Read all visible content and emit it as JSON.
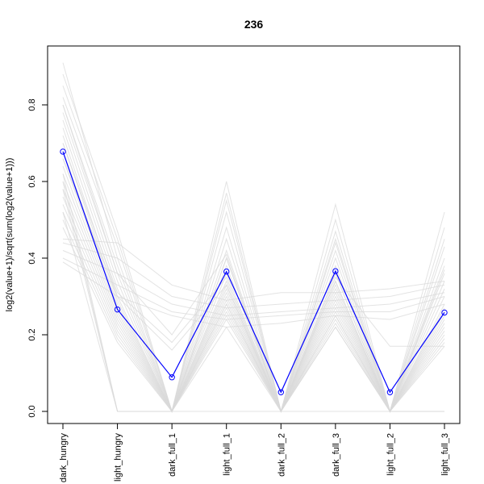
{
  "chart_data": {
    "type": "line",
    "title": "236",
    "xlabel": "",
    "ylabel": "log2(value+1)/sqrt(sum(log2(value+1)))",
    "categories": [
      "dark_hungry",
      "light_hungry",
      "dark_full_1",
      "light_full_1",
      "dark_full_2",
      "dark_full_3",
      "light_full_2",
      "light_full_3"
    ],
    "ylim": [
      -0.02,
      0.95
    ],
    "yticks": [
      0.0,
      0.2,
      0.4,
      0.6,
      0.8
    ],
    "ytick_labels": [
      "0.0",
      "0.2",
      "0.4",
      "0.6",
      "0.8"
    ],
    "grid": false,
    "legend": "none",
    "highlight_color": "#0000ff",
    "background_color": "#d9d9d9",
    "series": [
      {
        "values": [
          0.678,
          0.266,
          0.089,
          0.365,
          0.05,
          0.366,
          0.05,
          0.258
        ],
        "highlight": true
      },
      {
        "values": [
          0.91,
          0.4,
          0.0,
          0.6,
          0.0,
          0.54,
          0.0,
          0.52
        ]
      },
      {
        "values": [
          0.88,
          0.47,
          0.0,
          0.57,
          0.0,
          0.5,
          0.0,
          0.48
        ]
      },
      {
        "values": [
          0.85,
          0.45,
          0.0,
          0.55,
          0.0,
          0.47,
          0.0,
          0.45
        ]
      },
      {
        "values": [
          0.82,
          0.43,
          0.0,
          0.52,
          0.0,
          0.45,
          0.0,
          0.43
        ]
      },
      {
        "values": [
          0.8,
          0.38,
          0.0,
          0.48,
          0.0,
          0.44,
          0.0,
          0.4
        ]
      },
      {
        "values": [
          0.78,
          0.36,
          0.0,
          0.45,
          0.0,
          0.42,
          0.0,
          0.38
        ]
      },
      {
        "values": [
          0.76,
          0.34,
          0.0,
          0.42,
          0.0,
          0.4,
          0.0,
          0.36
        ]
      },
      {
        "values": [
          0.74,
          0.32,
          0.0,
          0.4,
          0.0,
          0.38,
          0.0,
          0.34
        ]
      },
      {
        "values": [
          0.72,
          0.3,
          0.0,
          0.38,
          0.0,
          0.36,
          0.0,
          0.32
        ]
      },
      {
        "values": [
          0.7,
          0.29,
          0.0,
          0.36,
          0.0,
          0.34,
          0.0,
          0.3
        ]
      },
      {
        "values": [
          0.68,
          0.28,
          0.0,
          0.34,
          0.0,
          0.32,
          0.0,
          0.28
        ]
      },
      {
        "values": [
          0.66,
          0.27,
          0.0,
          0.33,
          0.0,
          0.31,
          0.0,
          0.27
        ]
      },
      {
        "values": [
          0.64,
          0.26,
          0.0,
          0.32,
          0.0,
          0.3,
          0.0,
          0.26
        ]
      },
      {
        "values": [
          0.62,
          0.25,
          0.0,
          0.3,
          0.0,
          0.29,
          0.0,
          0.25
        ]
      },
      {
        "values": [
          0.6,
          0.24,
          0.0,
          0.29,
          0.0,
          0.28,
          0.0,
          0.24
        ]
      },
      {
        "values": [
          0.58,
          0.23,
          0.0,
          0.28,
          0.0,
          0.27,
          0.0,
          0.23
        ]
      },
      {
        "values": [
          0.56,
          0.22,
          0.0,
          0.27,
          0.0,
          0.26,
          0.0,
          0.22
        ]
      },
      {
        "values": [
          0.54,
          0.21,
          0.0,
          0.26,
          0.0,
          0.25,
          0.0,
          0.21
        ]
      },
      {
        "values": [
          0.52,
          0.2,
          0.0,
          0.25,
          0.0,
          0.24,
          0.0,
          0.2
        ]
      },
      {
        "values": [
          0.5,
          0.19,
          0.0,
          0.24,
          0.0,
          0.23,
          0.0,
          0.19
        ]
      },
      {
        "values": [
          0.48,
          0.18,
          0.0,
          0.22,
          0.0,
          0.22,
          0.0,
          0.18
        ]
      },
      {
        "values": [
          0.62,
          0.0,
          0.0,
          0.4,
          0.0,
          0.34,
          0.0,
          0.0
        ]
      },
      {
        "values": [
          0.6,
          0.0,
          0.0,
          0.31,
          0.0,
          0.22,
          0.0,
          0.0
        ]
      },
      {
        "values": [
          0.58,
          0.0,
          0.0,
          0.28,
          0.0,
          0.25,
          0.0,
          0.0
        ]
      },
      {
        "values": [
          0.52,
          0.0,
          0.0,
          0.0,
          0.0,
          0.0,
          0.0,
          0.0
        ]
      },
      {
        "values": [
          0.45,
          0.44,
          0.33,
          0.29,
          0.31,
          0.31,
          0.32,
          0.34
        ]
      },
      {
        "values": [
          0.44,
          0.4,
          0.3,
          0.27,
          0.28,
          0.29,
          0.3,
          0.33
        ]
      },
      {
        "values": [
          0.42,
          0.36,
          0.28,
          0.25,
          0.26,
          0.27,
          0.28,
          0.31
        ]
      },
      {
        "values": [
          0.4,
          0.33,
          0.26,
          0.24,
          0.25,
          0.26,
          0.26,
          0.3
        ]
      },
      {
        "values": [
          0.39,
          0.3,
          0.25,
          0.22,
          0.23,
          0.25,
          0.24,
          0.28
        ]
      },
      {
        "values": [
          0.8,
          0.36,
          0.2,
          0.41,
          0.0,
          0.36,
          0.0,
          0.37
        ]
      },
      {
        "values": [
          0.7,
          0.31,
          0.18,
          0.35,
          0.0,
          0.33,
          0.0,
          0.17
        ]
      },
      {
        "values": [
          0.66,
          0.3,
          0.16,
          0.33,
          0.0,
          0.35,
          0.17,
          0.17
        ]
      }
    ]
  }
}
